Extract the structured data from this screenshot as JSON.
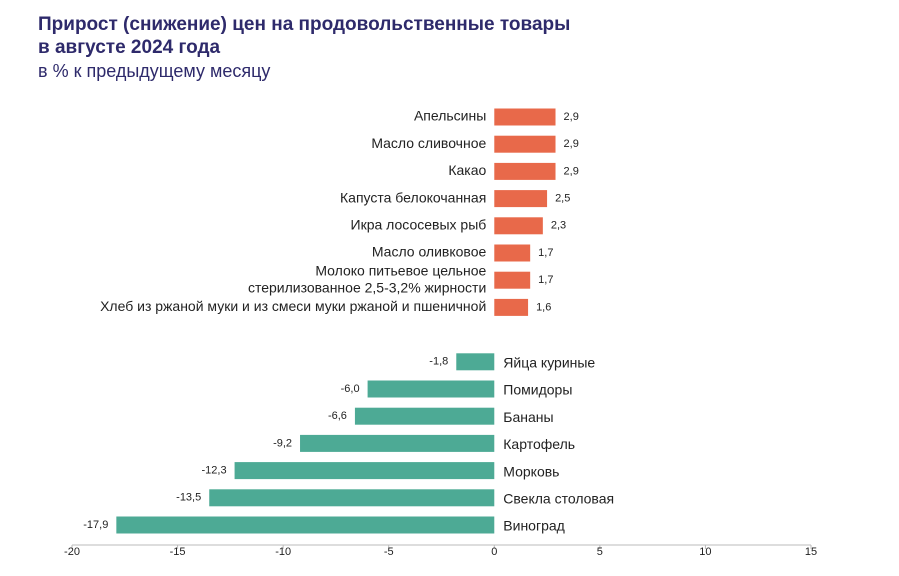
{
  "chart_data": {
    "type": "bar",
    "orientation": "horizontal",
    "title": [
      "Прирост (снижение) цен на продовольственные товары",
      "в августе 2024 года"
    ],
    "subtitle": "в % к предыдущему месяцу",
    "categories": [
      "Апельсины",
      "Масло сливочное",
      "Какао",
      "Капуста белокочанная",
      "Икра лососевых рыб",
      "Масло оливковое",
      "Молоко питьевое цельное\nстерилизованное 2,5-3,2% жирности",
      "Хлеб из ржаной муки и из смеси муки ржаной и пшеничной",
      null,
      "Яйца куриные",
      "Помидоры",
      "Бананы",
      "Картофель",
      "Морковь",
      "Свекла столовая",
      "Виноград"
    ],
    "values": [
      2.9,
      2.9,
      2.9,
      2.5,
      2.3,
      1.7,
      1.7,
      1.6,
      null,
      -1.8,
      -6.0,
      -6.6,
      -9.2,
      -12.3,
      -13.5,
      -17.9
    ],
    "value_labels": [
      "2,9",
      "2,9",
      "2,9",
      "2,5",
      "2,3",
      "1,7",
      "1,7",
      "1,6",
      null,
      "-1,8",
      "-6,0",
      "-6,6",
      "-9,2",
      "-12,3",
      "-13,5",
      "-17,9"
    ],
    "positive_color": "#e8694a",
    "negative_color": "#4daa95",
    "xlim": [
      -20,
      15
    ],
    "xticks": [
      -20,
      -15,
      -10,
      -5,
      0,
      5,
      10,
      15
    ],
    "grid": false
  }
}
